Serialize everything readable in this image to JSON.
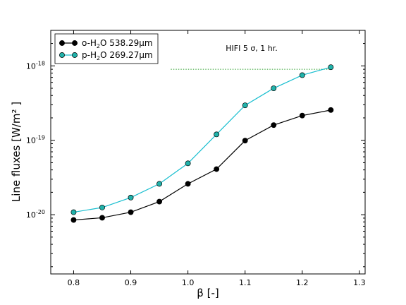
{
  "chart_data": {
    "type": "line",
    "xlabel": "β [-]",
    "ylabel": "Line fluxes [W/m² ]",
    "xlim": [
      0.76,
      1.31
    ],
    "ylim": [
      1.6e-21,
      3e-18
    ],
    "yscale": "log",
    "grid": false,
    "legend_position": "top-left",
    "x_ticks": [
      {
        "value": 0.8,
        "label": "0.8"
      },
      {
        "value": 0.9,
        "label": "0.9"
      },
      {
        "value": 1.0,
        "label": "1.0"
      },
      {
        "value": 1.1,
        "label": "1.1"
      },
      {
        "value": 1.2,
        "label": "1.2"
      },
      {
        "value": 1.3,
        "label": "1.3"
      }
    ],
    "y_ticks": [
      {
        "value": 1e-20,
        "base": "10",
        "exp": "-20"
      },
      {
        "value": 1e-19,
        "base": "10",
        "exp": "-19"
      },
      {
        "value": 1e-18,
        "base": "10",
        "exp": "-18"
      }
    ],
    "series": [
      {
        "name": "o-H₂O 538.29μm",
        "label_parts": {
          "pre": "o-H",
          "sub": "2",
          "post": "O 538.29μm"
        },
        "color": "#000000",
        "marker_color": "#000000",
        "x": [
          0.8,
          0.85,
          0.9,
          0.95,
          1.0,
          1.05,
          1.1,
          1.15,
          1.2,
          1.25
        ],
        "y": [
          8.5e-21,
          9.1e-21,
          1.08e-20,
          1.5e-20,
          2.6e-20,
          4.1e-20,
          9.9e-20,
          1.6e-19,
          2.15e-19,
          2.55e-19
        ]
      },
      {
        "name": "p-H₂O 269.27μm",
        "label_parts": {
          "pre": "p-H",
          "sub": "2",
          "post": "O 269.27μm"
        },
        "color": "#17becf",
        "marker_color": "#20b2aa",
        "x": [
          0.8,
          0.85,
          0.9,
          0.95,
          1.0,
          1.05,
          1.1,
          1.15,
          1.2,
          1.25
        ],
        "y": [
          1.08e-20,
          1.25e-20,
          1.7e-20,
          2.6e-20,
          4.9e-20,
          1.2e-19,
          2.95e-19,
          5e-19,
          7.5e-19,
          9.6e-19
        ]
      }
    ],
    "annotation": {
      "text": "HIFI 5 σ, 1 hr.",
      "threshold_y": 9e-19,
      "x_range": [
        0.97,
        1.25
      ],
      "line_color": "#2ca02c",
      "line_style": "dotted"
    }
  }
}
